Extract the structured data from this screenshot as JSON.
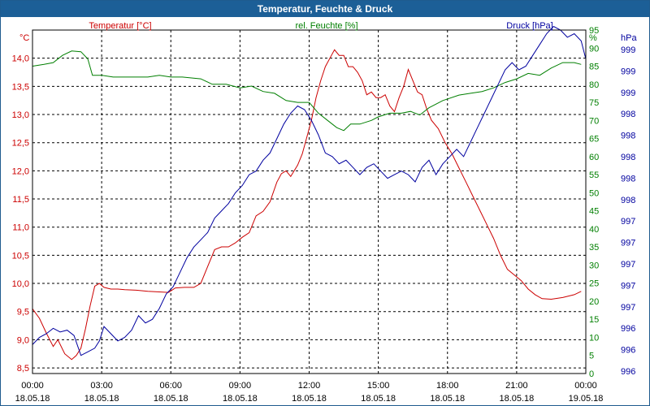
{
  "window": {
    "title": "Temperatur, Feuchte & Druck"
  },
  "colors": {
    "temperature": "#cc0000",
    "humidity": "#007f00",
    "pressure": "#00009f",
    "grid": "#000000",
    "titlebar": "#1c5f97"
  },
  "chart_data": {
    "type": "line",
    "title": "Temperatur, Feuchte & Druck",
    "grid": true,
    "legend": "top",
    "x_ticks": [
      {
        "time": "00:00",
        "date": "18.05.18"
      },
      {
        "time": "03:00",
        "date": "18.05.18"
      },
      {
        "time": "06:00",
        "date": "18.05.18"
      },
      {
        "time": "09:00",
        "date": "18.05.18"
      },
      {
        "time": "12:00",
        "date": "18.05.18"
      },
      {
        "time": "15:00",
        "date": "18.05.18"
      },
      {
        "time": "18:00",
        "date": "18.05.18"
      },
      {
        "time": "21:00",
        "date": "18.05.18"
      },
      {
        "time": "00:00",
        "date": "19.05.18"
      }
    ],
    "x_hours_range": [
      0,
      24
    ],
    "axes": {
      "temperature": {
        "label": "Temperatur [°C]",
        "unit": "°C",
        "range": [
          8.4,
          14.5
        ],
        "ticks": [
          "8,5",
          "9,0",
          "9,5",
          "10,0",
          "10,5",
          "11,0",
          "11,5",
          "12,0",
          "12,5",
          "13,0",
          "13,5",
          "14,0"
        ]
      },
      "humidity": {
        "label": "rel. Feuchte [%]",
        "unit": "%",
        "range": [
          0,
          95
        ],
        "ticks": [
          "0",
          "5",
          "10",
          "15",
          "20",
          "25",
          "30",
          "35",
          "40",
          "45",
          "50",
          "55",
          "60",
          "65",
          "70",
          "75",
          "80",
          "85",
          "90",
          "95"
        ]
      },
      "pressure": {
        "label": "Druck [hPa]",
        "unit": "hPa",
        "range": [
          0,
          95
        ],
        "ticks": [
          "996",
          "996",
          "996",
          "997",
          "997",
          "997",
          "997",
          "997",
          "998",
          "998",
          "998",
          "998",
          "998",
          "999",
          "999",
          "999"
        ]
      }
    },
    "series": [
      {
        "name": "Temperatur [°C]",
        "axis": "temperature",
        "points": [
          [
            0,
            9.55
          ],
          [
            0.3,
            9.38
          ],
          [
            0.6,
            9.12
          ],
          [
            0.9,
            8.88
          ],
          [
            1.1,
            9.0
          ],
          [
            1.4,
            8.75
          ],
          [
            1.7,
            8.65
          ],
          [
            1.9,
            8.72
          ],
          [
            2.1,
            8.85
          ],
          [
            2.3,
            9.2
          ],
          [
            2.5,
            9.6
          ],
          [
            2.7,
            9.95
          ],
          [
            2.9,
            10.0
          ],
          [
            3.1,
            9.93
          ],
          [
            3.4,
            9.9
          ],
          [
            3.7,
            9.9
          ],
          [
            4,
            9.89
          ],
          [
            4.5,
            9.88
          ],
          [
            5,
            9.86
          ],
          [
            5.5,
            9.85
          ],
          [
            5.9,
            9.84
          ],
          [
            6.2,
            9.92
          ],
          [
            6.6,
            9.93
          ],
          [
            7,
            9.93
          ],
          [
            7.3,
            10.0
          ],
          [
            7.6,
            10.3
          ],
          [
            7.9,
            10.6
          ],
          [
            8.2,
            10.65
          ],
          [
            8.5,
            10.65
          ],
          [
            8.8,
            10.72
          ],
          [
            9.1,
            10.82
          ],
          [
            9.4,
            10.9
          ],
          [
            9.7,
            11.2
          ],
          [
            10,
            11.28
          ],
          [
            10.3,
            11.45
          ],
          [
            10.6,
            11.8
          ],
          [
            10.8,
            11.95
          ],
          [
            11,
            12.0
          ],
          [
            11.2,
            11.9
          ],
          [
            11.5,
            12.1
          ],
          [
            11.7,
            12.3
          ],
          [
            11.9,
            12.6
          ],
          [
            12.1,
            12.9
          ],
          [
            12.3,
            13.3
          ],
          [
            12.5,
            13.6
          ],
          [
            12.7,
            13.85
          ],
          [
            12.9,
            14.0
          ],
          [
            13.1,
            14.15
          ],
          [
            13.3,
            14.05
          ],
          [
            13.5,
            14.05
          ],
          [
            13.7,
            13.85
          ],
          [
            13.9,
            13.85
          ],
          [
            14.1,
            13.75
          ],
          [
            14.3,
            13.6
          ],
          [
            14.5,
            13.35
          ],
          [
            14.7,
            13.4
          ],
          [
            14.9,
            13.3
          ],
          [
            15.1,
            13.3
          ],
          [
            15.3,
            13.35
          ],
          [
            15.5,
            13.15
          ],
          [
            15.7,
            13.05
          ],
          [
            15.9,
            13.3
          ],
          [
            16.1,
            13.5
          ],
          [
            16.3,
            13.8
          ],
          [
            16.5,
            13.6
          ],
          [
            16.7,
            13.4
          ],
          [
            16.9,
            13.35
          ],
          [
            17.1,
            13.1
          ],
          [
            17.3,
            12.9
          ],
          [
            17.6,
            12.75
          ],
          [
            17.9,
            12.5
          ],
          [
            18.2,
            12.3
          ],
          [
            18.5,
            12.05
          ],
          [
            18.8,
            11.8
          ],
          [
            19.1,
            11.55
          ],
          [
            19.4,
            11.3
          ],
          [
            19.7,
            11.05
          ],
          [
            20,
            10.8
          ],
          [
            20.3,
            10.5
          ],
          [
            20.6,
            10.25
          ],
          [
            20.9,
            10.15
          ],
          [
            21.2,
            10.05
          ],
          [
            21.5,
            9.9
          ],
          [
            21.8,
            9.8
          ],
          [
            22.1,
            9.73
          ],
          [
            22.5,
            9.72
          ],
          [
            23,
            9.75
          ],
          [
            23.5,
            9.8
          ],
          [
            23.8,
            9.86
          ]
        ]
      },
      {
        "name": "rel. Feuchte [%]",
        "axis": "humidity",
        "points": [
          [
            0,
            85
          ],
          [
            0.5,
            85.5
          ],
          [
            0.9,
            86
          ],
          [
            1.3,
            88
          ],
          [
            1.7,
            89.2
          ],
          [
            2.1,
            89
          ],
          [
            2.4,
            87
          ],
          [
            2.6,
            82.5
          ],
          [
            3,
            82.5
          ],
          [
            3.5,
            82
          ],
          [
            4.5,
            82
          ],
          [
            5,
            82
          ],
          [
            5.5,
            82.5
          ],
          [
            6,
            82
          ],
          [
            6.5,
            82
          ],
          [
            7.3,
            81.5
          ],
          [
            7.8,
            80
          ],
          [
            8.4,
            80
          ],
          [
            9,
            79
          ],
          [
            9.5,
            79.5
          ],
          [
            10,
            78
          ],
          [
            10.5,
            77.5
          ],
          [
            11,
            75.5
          ],
          [
            11.5,
            75
          ],
          [
            12,
            75
          ],
          [
            12.4,
            72
          ],
          [
            12.8,
            70
          ],
          [
            13.2,
            68
          ],
          [
            13.5,
            67.2
          ],
          [
            13.8,
            69
          ],
          [
            14.2,
            69
          ],
          [
            14.7,
            70
          ],
          [
            15,
            71
          ],
          [
            15.5,
            72
          ],
          [
            16,
            72
          ],
          [
            16.4,
            72.5
          ],
          [
            16.8,
            71.5
          ],
          [
            17.2,
            73.5
          ],
          [
            17.8,
            75.5
          ],
          [
            18.5,
            77
          ],
          [
            19,
            77.5
          ],
          [
            19.5,
            78
          ],
          [
            20,
            79
          ],
          [
            20.5,
            80.5
          ],
          [
            21,
            81.5
          ],
          [
            21.5,
            83
          ],
          [
            22,
            82.5
          ],
          [
            22.5,
            84.5
          ],
          [
            23,
            86
          ],
          [
            23.5,
            86
          ],
          [
            23.8,
            85.5
          ]
        ]
      },
      {
        "name": "Druck [hPa]",
        "axis": "pressure",
        "points": [
          [
            0,
            8
          ],
          [
            0.3,
            10
          ],
          [
            0.6,
            11
          ],
          [
            0.9,
            12.5
          ],
          [
            1.2,
            11.5
          ],
          [
            1.5,
            12
          ],
          [
            1.8,
            10.5
          ],
          [
            2.1,
            5
          ],
          [
            2.4,
            6
          ],
          [
            2.7,
            7
          ],
          [
            2.9,
            9
          ],
          [
            3.1,
            13
          ],
          [
            3.4,
            11
          ],
          [
            3.7,
            9
          ],
          [
            4,
            10
          ],
          [
            4.3,
            12
          ],
          [
            4.6,
            16
          ],
          [
            4.9,
            14
          ],
          [
            5.2,
            15
          ],
          [
            5.5,
            18
          ],
          [
            5.8,
            22
          ],
          [
            6.1,
            24
          ],
          [
            6.4,
            28
          ],
          [
            6.7,
            32
          ],
          [
            7,
            35
          ],
          [
            7.3,
            37
          ],
          [
            7.6,
            39
          ],
          [
            7.9,
            43
          ],
          [
            8.2,
            45
          ],
          [
            8.5,
            47
          ],
          [
            8.8,
            50
          ],
          [
            9.1,
            52
          ],
          [
            9.4,
            55
          ],
          [
            9.7,
            56
          ],
          [
            10,
            59
          ],
          [
            10.3,
            61
          ],
          [
            10.6,
            65
          ],
          [
            10.9,
            69
          ],
          [
            11.2,
            72
          ],
          [
            11.5,
            74
          ],
          [
            11.8,
            73
          ],
          [
            12.1,
            70
          ],
          [
            12.4,
            66
          ],
          [
            12.7,
            61
          ],
          [
            13,
            60
          ],
          [
            13.3,
            58
          ],
          [
            13.6,
            59
          ],
          [
            13.9,
            57
          ],
          [
            14.2,
            55
          ],
          [
            14.5,
            57
          ],
          [
            14.8,
            58
          ],
          [
            15.1,
            56
          ],
          [
            15.4,
            54
          ],
          [
            15.7,
            55
          ],
          [
            16,
            56
          ],
          [
            16.3,
            55
          ],
          [
            16.6,
            53
          ],
          [
            16.9,
            57
          ],
          [
            17.2,
            59
          ],
          [
            17.5,
            55
          ],
          [
            17.8,
            58
          ],
          [
            18.1,
            60
          ],
          [
            18.4,
            62
          ],
          [
            18.7,
            60
          ],
          [
            19,
            64
          ],
          [
            19.3,
            68
          ],
          [
            19.6,
            72
          ],
          [
            19.9,
            76
          ],
          [
            20.2,
            80
          ],
          [
            20.5,
            84
          ],
          [
            20.8,
            86
          ],
          [
            21.1,
            84
          ],
          [
            21.4,
            85
          ],
          [
            21.7,
            88
          ],
          [
            22,
            91
          ],
          [
            22.3,
            94
          ],
          [
            22.6,
            96
          ],
          [
            22.9,
            95
          ],
          [
            23.2,
            93
          ],
          [
            23.5,
            94
          ],
          [
            23.8,
            92
          ],
          [
            24,
            87
          ]
        ]
      }
    ]
  }
}
